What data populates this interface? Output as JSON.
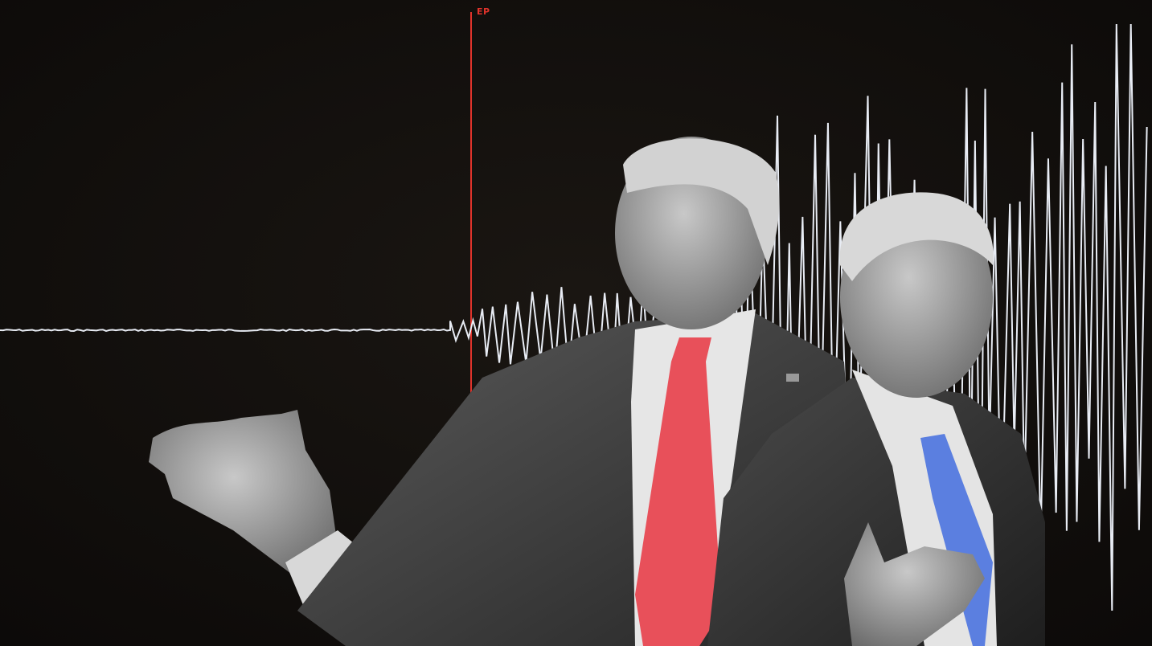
{
  "image": {
    "marker_label": "EP",
    "colors": {
      "background": "#110e0c",
      "waveform": "#e8ecf4",
      "marker": "#e0332b",
      "left_tie": "#e8505a",
      "right_tie": "#5b7fe0"
    }
  }
}
